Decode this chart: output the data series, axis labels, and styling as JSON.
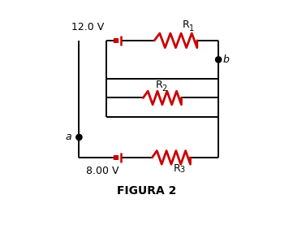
{
  "background_color": "#ffffff",
  "title": "FIGURA 2",
  "title_fontsize": 10,
  "title_fontweight": "bold",
  "wire_color": "#000000",
  "wire_lw": 1.4,
  "resistor_color": "#cc0000",
  "battery_color": "#cc0000",
  "label_color": "#000000",
  "node_color": "#000000",
  "label_a": "a",
  "label_b": "b",
  "label_v1": "12.0 V",
  "label_v2": "8.00 V",
  "label_r1": "R",
  "label_r1_sub": "1",
  "label_r2": "R",
  "label_r2_sub": "2",
  "label_r3": "R",
  "label_r3_sub": "3"
}
